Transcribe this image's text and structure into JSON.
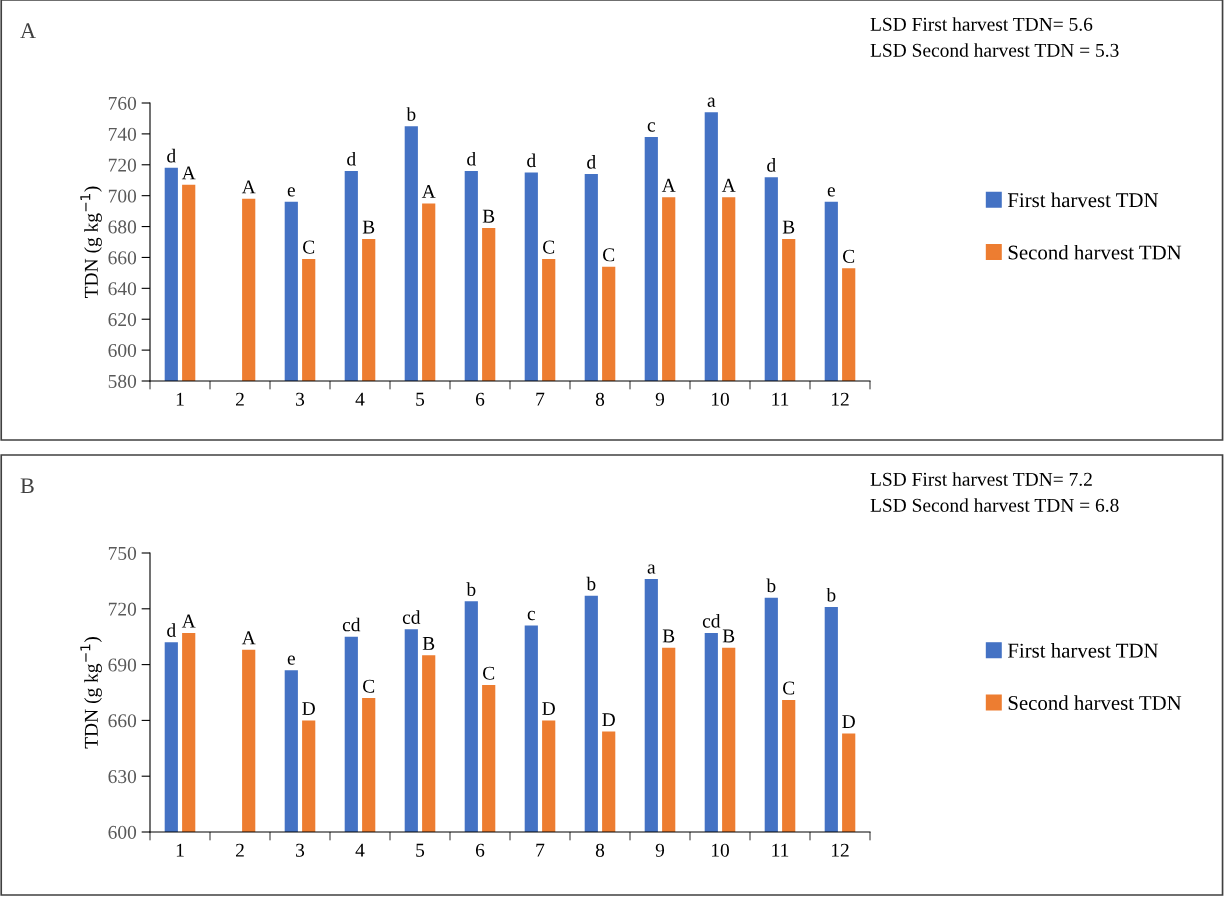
{
  "chart_data": [
    {
      "type": "bar",
      "title": "A",
      "ylabel": "TDN (g kg$^{−1}$)",
      "annotations": [
        "LSD First harvest TDN= 5.6",
        "LSD Second harvest TDN = 5.3"
      ],
      "categories": [
        "1",
        "2",
        "3",
        "4",
        "5",
        "6",
        "7",
        "8",
        "9",
        "10",
        "11",
        "12"
      ],
      "series": [
        {
          "name": "First harvest TDN",
          "color": "#4472c4",
          "values": [
            718,
            null,
            696,
            716,
            745,
            716,
            715,
            714,
            738,
            754,
            712,
            696
          ],
          "value_labels": [
            "d",
            null,
            "e",
            "d",
            "b",
            "d",
            "d",
            "d",
            "c",
            "a",
            "d",
            "e"
          ]
        },
        {
          "name": "Second harvest TDN",
          "color": "#ed7d31",
          "values": [
            707,
            698,
            659,
            672,
            695,
            679,
            659,
            654,
            699,
            699,
            672,
            653
          ],
          "value_labels": [
            "A",
            "A",
            "C",
            "B",
            "A",
            "B",
            "C",
            "C",
            "A",
            "A",
            "B",
            "C"
          ]
        }
      ],
      "ylim": [
        580,
        760
      ],
      "yticks": [
        580,
        600,
        620,
        640,
        660,
        680,
        700,
        720,
        740,
        760
      ],
      "grid": false,
      "legend": "right"
    },
    {
      "type": "bar",
      "title": "B",
      "ylabel": "TDN (g kg$^{−1}$)",
      "annotations": [
        "LSD First harvest TDN= 7.2",
        "LSD Second harvest TDN = 6.8"
      ],
      "categories": [
        "1",
        "2",
        "3",
        "4",
        "5",
        "6",
        "7",
        "8",
        "9",
        "10",
        "11",
        "12"
      ],
      "series": [
        {
          "name": "First harvest TDN",
          "color": "#4472c4",
          "values": [
            702,
            null,
            687,
            705,
            709,
            724,
            711,
            727,
            736,
            707,
            726,
            721
          ],
          "value_labels": [
            "d",
            null,
            "e",
            "cd",
            "cd",
            "b",
            "c",
            "b",
            "a",
            "cd",
            "b",
            "b"
          ]
        },
        {
          "name": "Second harvest TDN",
          "color": "#ed7d31",
          "values": [
            707,
            698,
            660,
            672,
            695,
            679,
            660,
            654,
            699,
            699,
            671,
            653
          ],
          "value_labels": [
            "A",
            "A",
            "D",
            "C",
            "B",
            "C",
            "D",
            "D",
            "B",
            "B",
            "C",
            "D"
          ]
        }
      ],
      "ylim": [
        600,
        750
      ],
      "yticks": [
        600,
        630,
        660,
        690,
        720,
        750
      ],
      "grid": false,
      "legend": "right"
    }
  ]
}
